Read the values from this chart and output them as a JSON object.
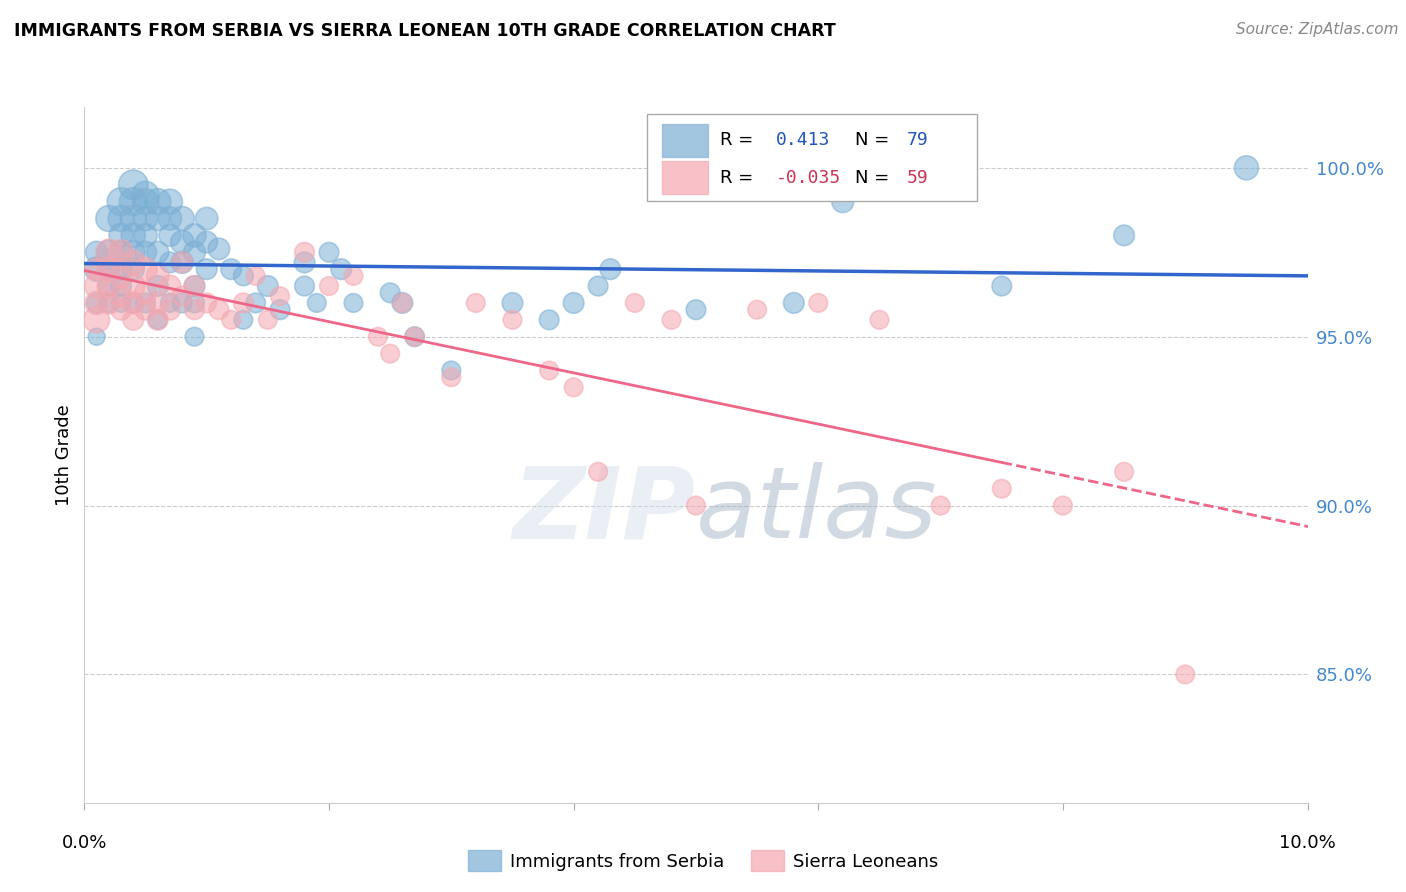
{
  "title": "IMMIGRANTS FROM SERBIA VS SIERRA LEONEAN 10TH GRADE CORRELATION CHART",
  "source": "Source: ZipAtlas.com",
  "ylabel": "10th Grade",
  "y_tick_labels": [
    "85.0%",
    "90.0%",
    "95.0%",
    "100.0%"
  ],
  "y_tick_values": [
    0.85,
    0.9,
    0.95,
    1.0
  ],
  "x_range": [
    0.0,
    0.1
  ],
  "y_range": [
    0.812,
    1.018
  ],
  "legend_blue_r": "0.413",
  "legend_blue_n": "79",
  "legend_pink_r": "-0.035",
  "legend_pink_n": "59",
  "legend_label_blue": "Immigrants from Serbia",
  "legend_label_pink": "Sierra Leoneans",
  "blue_color": "#7BAFD4",
  "pink_color": "#F4A7B0",
  "blue_edge": "#7BAFD4",
  "pink_edge": "#F4A7B0",
  "blue_line_color": "#3366CC",
  "pink_line_color": "#EE6688",
  "blue_x": [
    0.001,
    0.001,
    0.001,
    0.001,
    0.002,
    0.002,
    0.002,
    0.002,
    0.002,
    0.003,
    0.003,
    0.003,
    0.003,
    0.003,
    0.003,
    0.003,
    0.004,
    0.004,
    0.004,
    0.004,
    0.004,
    0.004,
    0.004,
    0.005,
    0.005,
    0.005,
    0.005,
    0.005,
    0.005,
    0.006,
    0.006,
    0.006,
    0.006,
    0.006,
    0.007,
    0.007,
    0.007,
    0.007,
    0.007,
    0.008,
    0.008,
    0.008,
    0.008,
    0.009,
    0.009,
    0.009,
    0.009,
    0.009,
    0.01,
    0.01,
    0.01,
    0.011,
    0.012,
    0.013,
    0.013,
    0.014,
    0.015,
    0.016,
    0.018,
    0.018,
    0.019,
    0.02,
    0.021,
    0.022,
    0.025,
    0.026,
    0.027,
    0.03,
    0.035,
    0.038,
    0.04,
    0.042,
    0.043,
    0.05,
    0.058,
    0.062,
    0.075,
    0.085,
    0.095
  ],
  "blue_y": [
    0.97,
    0.975,
    0.96,
    0.95,
    0.985,
    0.975,
    0.97,
    0.965,
    0.96,
    0.99,
    0.985,
    0.98,
    0.975,
    0.97,
    0.965,
    0.96,
    0.995,
    0.99,
    0.985,
    0.98,
    0.975,
    0.97,
    0.96,
    0.992,
    0.99,
    0.985,
    0.98,
    0.975,
    0.96,
    0.99,
    0.985,
    0.975,
    0.965,
    0.955,
    0.99,
    0.985,
    0.98,
    0.972,
    0.96,
    0.985,
    0.978,
    0.972,
    0.96,
    0.98,
    0.975,
    0.965,
    0.96,
    0.95,
    0.985,
    0.978,
    0.97,
    0.976,
    0.97,
    0.968,
    0.955,
    0.96,
    0.965,
    0.958,
    0.972,
    0.965,
    0.96,
    0.975,
    0.97,
    0.96,
    0.963,
    0.96,
    0.95,
    0.94,
    0.96,
    0.955,
    0.96,
    0.965,
    0.97,
    0.958,
    0.96,
    0.99,
    0.965,
    0.98,
    1.0
  ],
  "blue_size": [
    300,
    250,
    200,
    150,
    350,
    300,
    250,
    220,
    180,
    400,
    350,
    300,
    280,
    250,
    220,
    180,
    450,
    400,
    350,
    300,
    280,
    250,
    200,
    380,
    350,
    300,
    280,
    250,
    200,
    350,
    300,
    250,
    220,
    180,
    320,
    280,
    250,
    220,
    180,
    300,
    280,
    250,
    200,
    280,
    250,
    220,
    200,
    180,
    260,
    240,
    220,
    240,
    220,
    200,
    180,
    200,
    220,
    200,
    220,
    200,
    180,
    200,
    220,
    180,
    200,
    220,
    200,
    180,
    220,
    200,
    220,
    200,
    220,
    200,
    220,
    250,
    200,
    220,
    300
  ],
  "pink_x": [
    0.001,
    0.001,
    0.001,
    0.001,
    0.002,
    0.002,
    0.002,
    0.002,
    0.003,
    0.003,
    0.003,
    0.003,
    0.004,
    0.004,
    0.004,
    0.004,
    0.005,
    0.005,
    0.005,
    0.006,
    0.006,
    0.006,
    0.007,
    0.007,
    0.008,
    0.008,
    0.009,
    0.009,
    0.01,
    0.011,
    0.012,
    0.013,
    0.014,
    0.015,
    0.016,
    0.018,
    0.02,
    0.022,
    0.024,
    0.025,
    0.026,
    0.027,
    0.03,
    0.032,
    0.035,
    0.038,
    0.04,
    0.042,
    0.045,
    0.048,
    0.05,
    0.055,
    0.06,
    0.065,
    0.07,
    0.075,
    0.08,
    0.085,
    0.09
  ],
  "pink_y": [
    0.955,
    0.965,
    0.96,
    0.97,
    0.975,
    0.97,
    0.965,
    0.96,
    0.975,
    0.968,
    0.962,
    0.958,
    0.972,
    0.965,
    0.96,
    0.955,
    0.97,
    0.963,
    0.958,
    0.968,
    0.96,
    0.955,
    0.965,
    0.958,
    0.972,
    0.962,
    0.965,
    0.958,
    0.96,
    0.958,
    0.955,
    0.96,
    0.968,
    0.955,
    0.962,
    0.975,
    0.965,
    0.968,
    0.95,
    0.945,
    0.96,
    0.95,
    0.938,
    0.96,
    0.955,
    0.94,
    0.935,
    0.91,
    0.96,
    0.955,
    0.9,
    0.958,
    0.96,
    0.955,
    0.9,
    0.905,
    0.9,
    0.91,
    0.85
  ],
  "pink_size": [
    350,
    300,
    280,
    250,
    350,
    300,
    280,
    250,
    320,
    280,
    250,
    220,
    300,
    280,
    250,
    220,
    280,
    250,
    220,
    260,
    240,
    220,
    240,
    220,
    220,
    200,
    220,
    200,
    200,
    200,
    180,
    200,
    180,
    180,
    180,
    200,
    180,
    180,
    180,
    180,
    180,
    180,
    180,
    180,
    180,
    180,
    180,
    180,
    180,
    180,
    180,
    180,
    180,
    180,
    180,
    180,
    180,
    180,
    180
  ]
}
